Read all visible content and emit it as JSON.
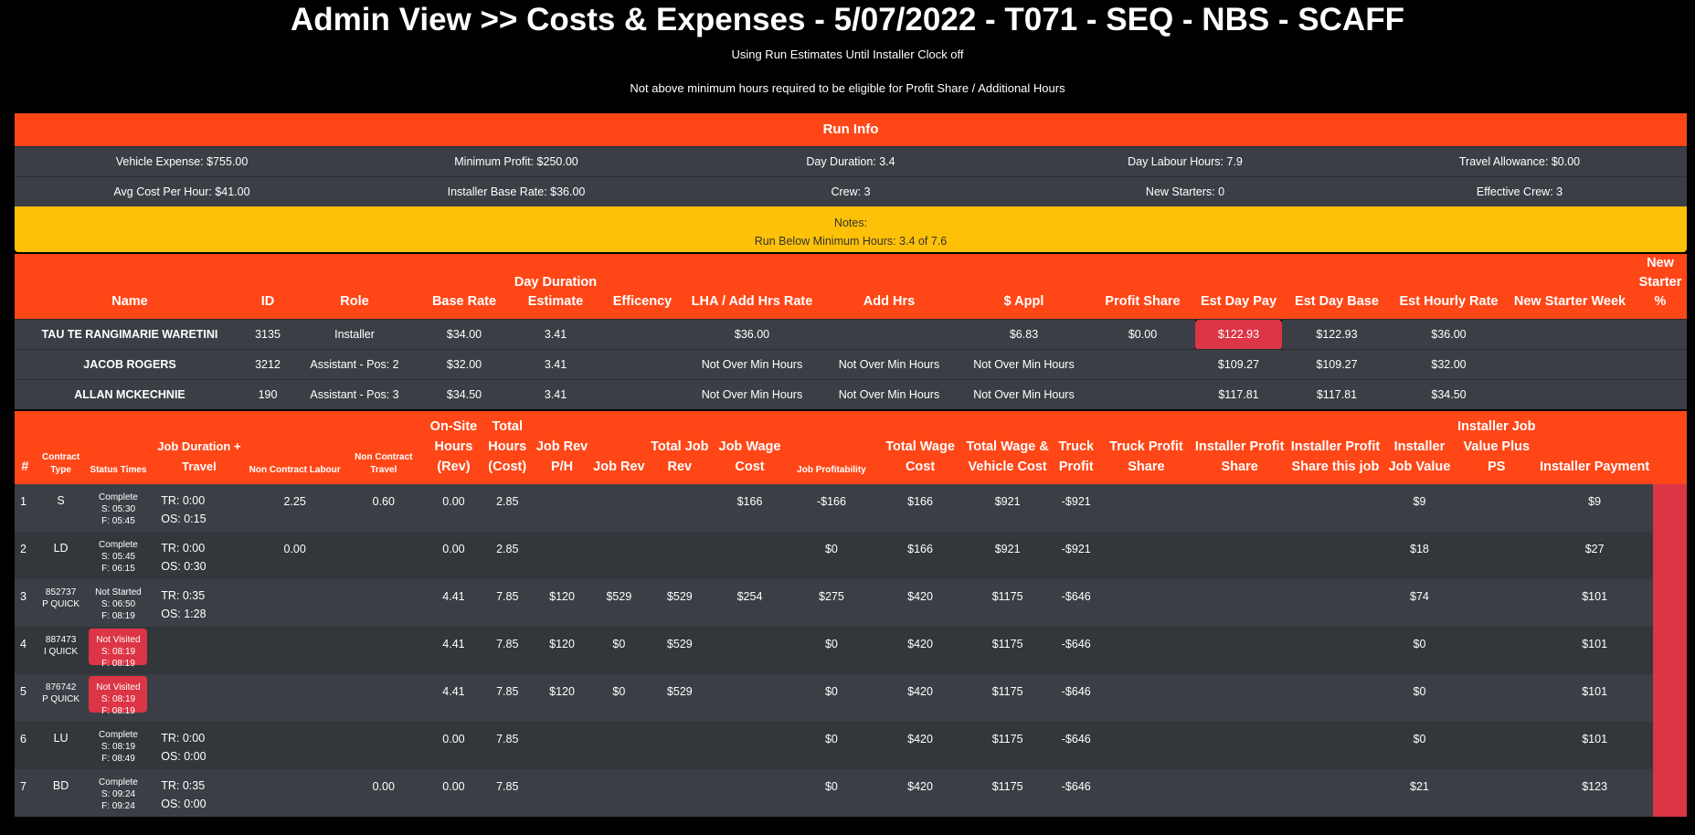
{
  "header": {
    "title": "Admin View >> Costs & Expenses - 5/07/2022 - T071 - SEQ - NBS - SCAFF",
    "sub1": "Using Run Estimates Until Installer Clock off",
    "sub2": "Not above minimum hours required to be eligible for Profit Share / Additional Hours"
  },
  "run_info": {
    "heading": "Run Info",
    "row1": [
      "Vehicle Expense: $755.00",
      "Minimum Profit: $250.00",
      "Day Duration: 3.4",
      "Day Labour Hours: 7.9",
      "Travel Allowance: $0.00"
    ],
    "row2": [
      "Avg Cost Per Hour: $41.00",
      "Installer Base Rate: $36.00",
      "Crew: 3",
      "New Starters: 0",
      "Effective Crew: 3"
    ],
    "notes_label": "Notes:",
    "notes_text": "Run Below Minimum Hours: 3.4 of 7.6"
  },
  "crew": {
    "headers": [
      "Name",
      "ID",
      "Role",
      "Base Rate",
      "Day Duration Estimate",
      "Efficency",
      "LHA / Add Hrs Rate",
      "Add Hrs",
      "$ Appl",
      "Profit Share",
      "Est Day Pay",
      "Est Day Base",
      "Est Hourly Rate",
      "New Starter Week",
      "New Starter %"
    ],
    "rows": [
      [
        "TAU TE RANGIMARIE WARETINI",
        "3135",
        "Installer",
        "$34.00",
        "3.41",
        "",
        "$36.00",
        "",
        "$6.83",
        "$0.00",
        "$122.93",
        "$122.93",
        "$36.00",
        "",
        ""
      ],
      [
        "JACOB ROGERS",
        "3212",
        "Assistant - Pos: 2",
        "$32.00",
        "3.41",
        "",
        "Not Over Min Hours",
        "Not Over Min Hours",
        "Not Over Min Hours",
        "",
        "$109.27",
        "$109.27",
        "$32.00",
        "",
        ""
      ],
      [
        "ALLAN MCKECHNIE",
        "190",
        "Assistant - Pos: 3",
        "$34.50",
        "3.41",
        "",
        "Not Over Min Hours",
        "Not Over Min Hours",
        "Not Over Min Hours",
        "",
        "$117.81",
        "$117.81",
        "$34.50",
        "",
        ""
      ]
    ]
  },
  "jobs": {
    "headers": {
      "idx": "#",
      "contract_type": "Contract Type",
      "status": "Status Times",
      "duration": "Job Duration + Travel",
      "non_labour": "Non Contract Labour",
      "non_travel": "Non Contract Travel",
      "onsite": "On-Site Hours (Rev)",
      "total_hours": "Total Hours (Cost)",
      "rev_ph": "Job Rev P/H",
      "job_rev": "Job Rev",
      "total_rev": "Total Job Rev",
      "wage_cost": "Job Wage Cost",
      "profitability": "Job Profitability",
      "total_wage": "Total Wage Cost",
      "wage_vehicle": "Total Wage & Vehicle Cost",
      "truck_profit": "Truck Profit",
      "truck_ps": "Truck Profit Share",
      "inst_ps": "Installer Profit Share",
      "inst_ps_job": "Installer Profit Share this job",
      "inst_val": "Installer Job Value",
      "inst_val_ps": "Installer Job Value Plus PS",
      "inst_pay": "Installer Payment"
    },
    "rows": [
      {
        "idx": "1",
        "ct1": "S",
        "ct2": "",
        "status": "Complete",
        "s": "S: 05:30",
        "f": "F: 05:45",
        "red": false,
        "tr": "TR: 0:00",
        "os": "OS: 0:15",
        "nl": "2.25",
        "nt": "0.60",
        "onsite": "0.00",
        "th": "2.85",
        "rph": "",
        "jr": "",
        "tjr": "",
        "wc": "$166",
        "jp": "-$166",
        "tw": "$166",
        "twv": "$921",
        "tp": "-$921",
        "tps": "",
        "ips": "",
        "ipsj": "",
        "ijv": "$9",
        "ijvps": "",
        "ip": "$9"
      },
      {
        "idx": "2",
        "ct1": "LD",
        "ct2": "",
        "status": "Complete",
        "s": "S: 05:45",
        "f": "F: 06:15",
        "red": false,
        "tr": "TR: 0:00",
        "os": "OS: 0:30",
        "nl": "0.00",
        "nt": "",
        "onsite": "0.00",
        "th": "2.85",
        "rph": "",
        "jr": "",
        "tjr": "",
        "wc": "",
        "jp": "$0",
        "tw": "$166",
        "twv": "$921",
        "tp": "-$921",
        "tps": "",
        "ips": "",
        "ipsj": "",
        "ijv": "$18",
        "ijvps": "",
        "ip": "$27"
      },
      {
        "idx": "3",
        "ct1": "852737",
        "ct2": "P QUICK",
        "status": "Not Started",
        "s": "S: 06:50",
        "f": "F: 08:19",
        "red": false,
        "tr": "TR: 0:35",
        "os": "OS: 1:28",
        "nl": "",
        "nt": "",
        "onsite": "4.41",
        "th": "7.85",
        "rph": "$120",
        "jr": "$529",
        "tjr": "$529",
        "wc": "$254",
        "jp": "$275",
        "tw": "$420",
        "twv": "$1175",
        "tp": "-$646",
        "tps": "",
        "ips": "",
        "ipsj": "",
        "ijv": "$74",
        "ijvps": "",
        "ip": "$101"
      },
      {
        "idx": "4",
        "ct1": "887473",
        "ct2": "I QUICK",
        "status": "Not Visited",
        "s": "S: 08:19",
        "f": "F: 08:19",
        "red": true,
        "tr": "",
        "os": "",
        "nl": "",
        "nt": "",
        "onsite": "4.41",
        "th": "7.85",
        "rph": "$120",
        "jr": "$0",
        "tjr": "$529",
        "wc": "",
        "jp": "$0",
        "tw": "$420",
        "twv": "$1175",
        "tp": "-$646",
        "tps": "",
        "ips": "",
        "ipsj": "",
        "ijv": "$0",
        "ijvps": "",
        "ip": "$101"
      },
      {
        "idx": "5",
        "ct1": "876742",
        "ct2": "P QUICK",
        "status": "Not Visited",
        "s": "S: 08:19",
        "f": "F: 08:19",
        "red": true,
        "tr": "",
        "os": "",
        "nl": "",
        "nt": "",
        "onsite": "4.41",
        "th": "7.85",
        "rph": "$120",
        "jr": "$0",
        "tjr": "$529",
        "wc": "",
        "jp": "$0",
        "tw": "$420",
        "twv": "$1175",
        "tp": "-$646",
        "tps": "",
        "ips": "",
        "ipsj": "",
        "ijv": "$0",
        "ijvps": "",
        "ip": "$101"
      },
      {
        "idx": "6",
        "ct1": "LU",
        "ct2": "",
        "status": "Complete",
        "s": "S: 08:19",
        "f": "F: 08:49",
        "red": false,
        "tr": "TR: 0:00",
        "os": "OS: 0:00",
        "nl": "",
        "nt": "",
        "onsite": "0.00",
        "th": "7.85",
        "rph": "",
        "jr": "",
        "tjr": "",
        "wc": "",
        "jp": "$0",
        "tw": "$420",
        "twv": "$1175",
        "tp": "-$646",
        "tps": "",
        "ips": "",
        "ipsj": "",
        "ijv": "$0",
        "ijvps": "",
        "ip": "$101"
      },
      {
        "idx": "7",
        "ct1": "BD",
        "ct2": "",
        "status": "Complete",
        "s": "S: 09:24",
        "f": "F: 09:24",
        "red": false,
        "tr": "TR: 0:35",
        "os": "OS: 0:00",
        "nl": "",
        "nt": "0.00",
        "onsite": "0.00",
        "th": "7.85",
        "rph": "",
        "jr": "",
        "tjr": "",
        "wc": "",
        "jp": "$0",
        "tw": "$420",
        "twv": "$1175",
        "tp": "-$646",
        "tps": "",
        "ips": "",
        "ipsj": "",
        "ijv": "$21",
        "ijvps": "",
        "ip": "$123"
      }
    ]
  },
  "colors": {
    "accent": "#ff4617",
    "row": "#3b3f45",
    "notes": "#ffc107",
    "danger": "#dc3545"
  }
}
